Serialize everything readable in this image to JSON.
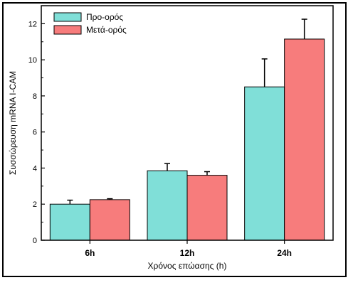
{
  "chart_data": {
    "type": "bar",
    "categories": [
      "6h",
      "12h",
      "24h"
    ],
    "series": [
      {
        "name": "Προ-ορός",
        "color": "#80dfd8",
        "values": [
          2.0,
          3.85,
          8.5
        ],
        "errors": [
          0.22,
          0.4,
          1.55
        ]
      },
      {
        "name": "Μετά-ορός",
        "color": "#f77c7c",
        "values": [
          2.25,
          3.6,
          11.15
        ],
        "errors": [
          0.05,
          0.2,
          1.1
        ]
      }
    ],
    "title": "",
    "xlabel": "Χρόνος επώασης (h)",
    "ylabel": "Συσσώρευση mRNA I-CAM",
    "ylim": [
      0,
      13
    ],
    "yticks": [
      0,
      2,
      4,
      6,
      8,
      10,
      12
    ],
    "grid": false,
    "legend_position": "top-left"
  }
}
